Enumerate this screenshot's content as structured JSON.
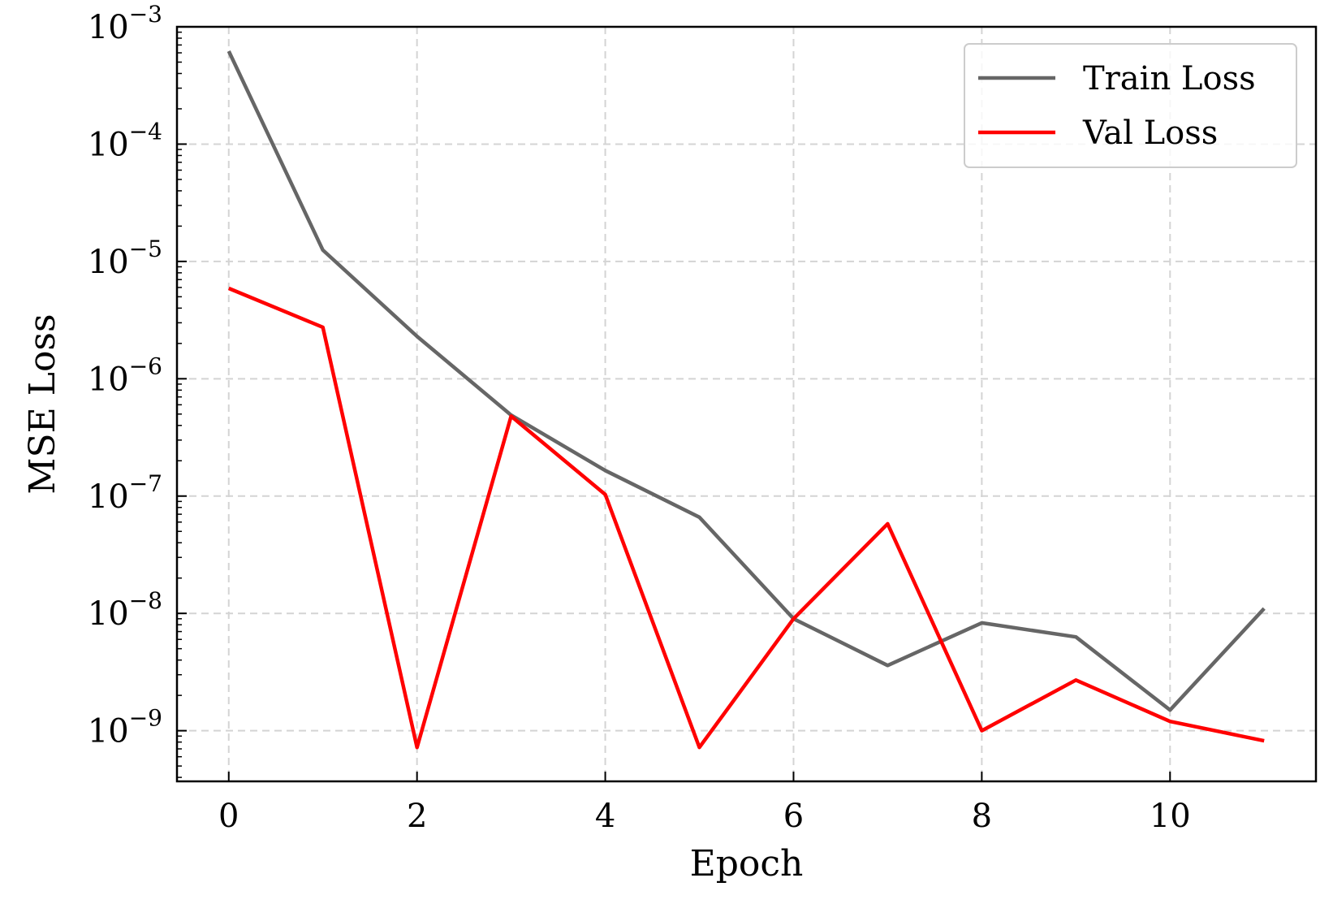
{
  "chart_data": {
    "type": "line",
    "title": "",
    "xlabel": "Epoch",
    "ylabel": "MSE Loss",
    "xlim": [
      -0.55,
      11.55
    ],
    "ylim": [
      3.7e-10,
      0.001
    ],
    "yscale": "log",
    "grid": true,
    "legend_position": "top-right",
    "x_ticks": [
      0,
      2,
      4,
      6,
      8,
      10
    ],
    "x_tick_labels": [
      "0",
      "2",
      "4",
      "6",
      "8",
      "10"
    ],
    "y_ticks": [
      {
        "value": 0.001,
        "base": "10",
        "exponent": "−3"
      },
      {
        "value": 0.0001,
        "base": "10",
        "exponent": "−4"
      },
      {
        "value": 1e-05,
        "base": "10",
        "exponent": "−5"
      },
      {
        "value": 1e-06,
        "base": "10",
        "exponent": "−6"
      },
      {
        "value": 1e-07,
        "base": "10",
        "exponent": "−7"
      },
      {
        "value": 1e-08,
        "base": "10",
        "exponent": "−8"
      },
      {
        "value": 1e-09,
        "base": "10",
        "exponent": "−9"
      }
    ],
    "x": [
      0,
      1,
      2,
      3,
      4,
      5,
      6,
      7,
      8,
      9,
      10,
      11
    ],
    "series": [
      {
        "name": "Train Loss",
        "color": "#666666",
        "values": [
          0.00062,
          1.25e-05,
          2.3e-06,
          4.9e-07,
          1.65e-07,
          6.6e-08,
          9e-09,
          3.6e-09,
          8.3e-09,
          6.3e-09,
          1.5e-09,
          1.1e-08
        ]
      },
      {
        "name": "Val Loss",
        "color": "#ff0000",
        "values": [
          5.9e-06,
          2.75e-06,
          7.2e-10,
          4.8e-07,
          1.03e-07,
          7.2e-10,
          9e-09,
          5.8e-08,
          1e-09,
          2.7e-09,
          1.2e-09,
          8.2e-10
        ]
      }
    ]
  }
}
